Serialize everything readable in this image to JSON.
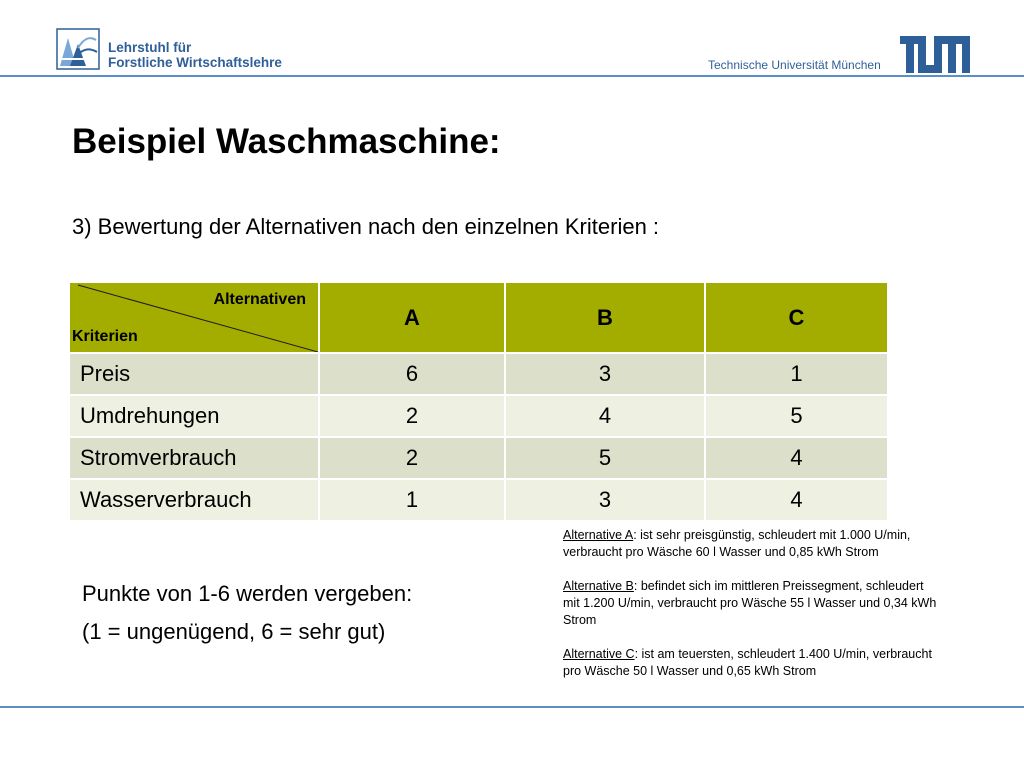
{
  "header": {
    "chair_line1": "Lehrstuhl für",
    "chair_line2": "Forstliche Wirtschaftslehre",
    "university": "Technische Universität München",
    "tum_logo_text": "TUM"
  },
  "slide": {
    "title": "Beispiel Waschmaschine:",
    "subtitle": "3) Bewertung der Alternativen nach den einzelnen Kriterien :"
  },
  "table": {
    "corner_top": "Alternativen",
    "corner_bottom": "Kriterien",
    "columns": [
      "A",
      "B",
      "C"
    ],
    "rows": [
      {
        "label": "Preis",
        "values": [
          "6",
          "3",
          "1"
        ]
      },
      {
        "label": "Umdrehungen",
        "values": [
          "2",
          "4",
          "5"
        ]
      },
      {
        "label": "Stromverbrauch",
        "values": [
          "2",
          "5",
          "4"
        ]
      },
      {
        "label": "Wasserverbrauch",
        "values": [
          "1",
          "3",
          "4"
        ]
      }
    ]
  },
  "points": {
    "line1": "Punkte von 1-6 werden vergeben:",
    "line2": "(1 = ungenügend, 6 = sehr gut)"
  },
  "notes": [
    {
      "label": "Alternative A",
      "text": ": ist sehr preisgünstig, schleudert mit 1.000 U/min, verbraucht pro Wäsche 60 l Wasser und 0,85 kWh Strom"
    },
    {
      "label": "Alternative B",
      "text": ": befindet sich im mittleren Preissegment, schleudert mit 1.200 U/min, verbraucht pro Wäsche 55 l Wasser und  0,34 kWh Strom"
    },
    {
      "label": "Alternative C",
      "text": ": ist am teuersten, schleudert 1.400 U/min, verbraucht pro Wäsche 50 l Wasser und 0,65 kWh Strom"
    }
  ],
  "colors": {
    "accent_blue": "#2f5f98",
    "rule_blue": "#5b8fc9",
    "header_olive": "#a3ad00",
    "row_light": "#eef0e1",
    "row_dark": "#dcdfc9"
  }
}
